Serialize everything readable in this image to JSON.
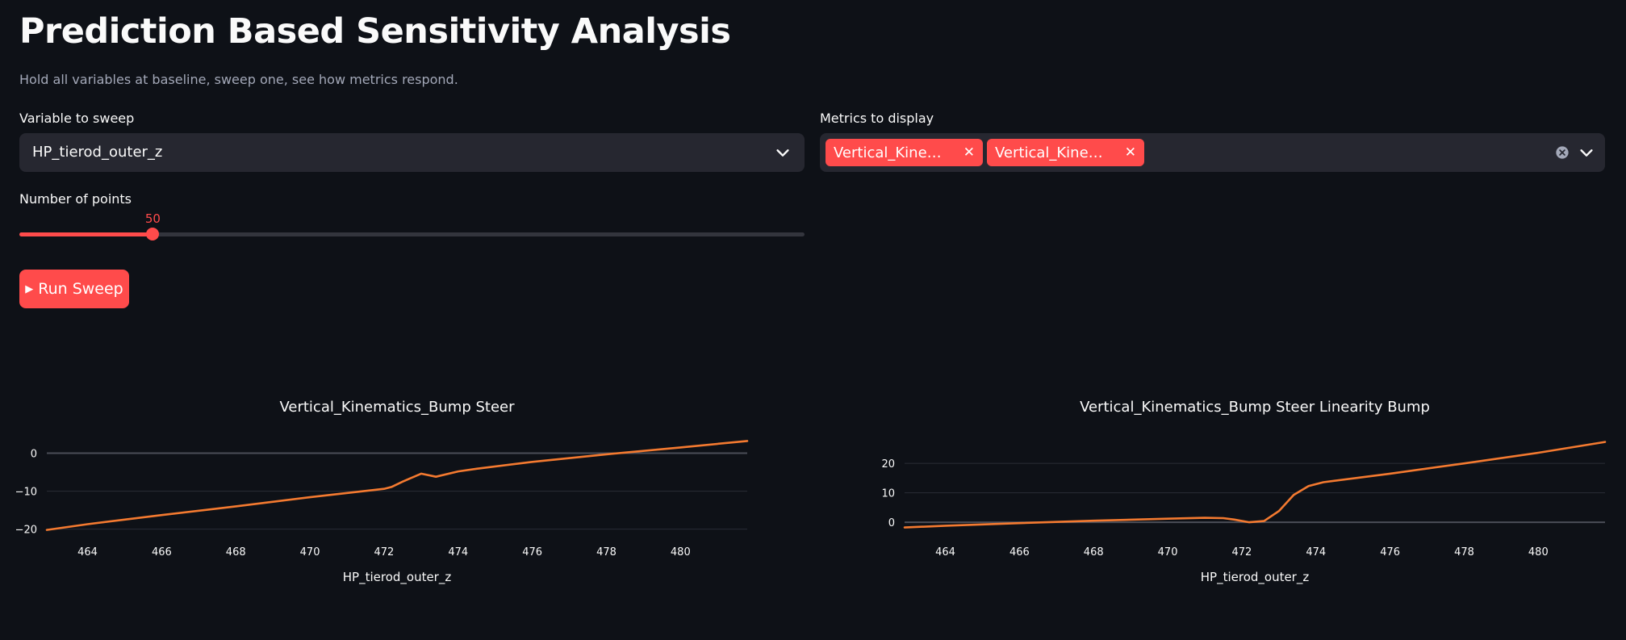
{
  "page": {
    "title": "Prediction Based Sensitivity Analysis",
    "subtitle": "Hold all variables at baseline, sweep one, see how metrics respond."
  },
  "controls": {
    "variable_label": "Variable to sweep",
    "variable_value": "HP_tierod_outer_z",
    "metrics_label": "Metrics to display",
    "metrics_chips": [
      "Vertical_Kinematics_Bump Steer",
      "Vertical_Kinematics_Bump Steer Linearity Bump"
    ],
    "points_label": "Number of points",
    "points_value": "50",
    "points_fraction": 0.17,
    "run_label": "Run Sweep"
  },
  "colors": {
    "accent": "#ff4b4b",
    "line": "#f47a30",
    "bg": "#0e1117",
    "input_bg": "#262730"
  },
  "icons": {
    "select_chevron": "chevron-down-icon",
    "chip_remove": "close-icon",
    "clear_all": "clear-circle-icon",
    "run": "play-icon"
  },
  "chart_data": [
    {
      "type": "line",
      "title": "Vertical_Kinematics_Bump Steer",
      "xlabel": "HP_tierod_outer_z",
      "ylabel": "",
      "xlim": [
        462.9,
        481.8
      ],
      "ylim": [
        -20.5,
        3.5
      ],
      "xticks": [
        464,
        466,
        468,
        470,
        472,
        474,
        476,
        478,
        480
      ],
      "yticks": [
        0,
        -10,
        -20
      ],
      "ytick_labels": [
        "0",
        "−10",
        "−20"
      ],
      "series": [
        {
          "x": [
            462.9,
            464,
            466,
            468,
            470,
            472,
            472.2,
            472.5,
            473,
            473.4,
            474,
            474.5,
            476,
            478,
            480,
            481.8
          ],
          "y": [
            -20.2,
            -18.7,
            -16.3,
            -14,
            -11.6,
            -9.4,
            -8.9,
            -7.5,
            -5.4,
            -6.2,
            -4.8,
            -4.1,
            -2.3,
            -0.3,
            1.5,
            3.2
          ]
        }
      ]
    },
    {
      "type": "line",
      "title": "Vertical_Kinematics_Bump Steer Linearity Bump",
      "xlabel": "HP_tierod_outer_z",
      "ylabel": "",
      "xlim": [
        462.9,
        481.8
      ],
      "ylim": [
        -3,
        28
      ],
      "xticks": [
        464,
        466,
        468,
        470,
        472,
        474,
        476,
        478,
        480
      ],
      "yticks": [
        20,
        10,
        0
      ],
      "ytick_labels": [
        "20",
        "10",
        "0"
      ],
      "series": [
        {
          "x": [
            462.9,
            464,
            466,
            468,
            470,
            471,
            471.5,
            471.8,
            472.2,
            472.6,
            473,
            473.4,
            473.8,
            474.2,
            476,
            478,
            480,
            481.8
          ],
          "y": [
            -1.8,
            -1.2,
            -0.3,
            0.5,
            1.2,
            1.5,
            1.4,
            0.9,
            0,
            0.4,
            3.8,
            9.3,
            12.3,
            13.6,
            16.5,
            20,
            23.6,
            27.3
          ]
        }
      ]
    }
  ]
}
